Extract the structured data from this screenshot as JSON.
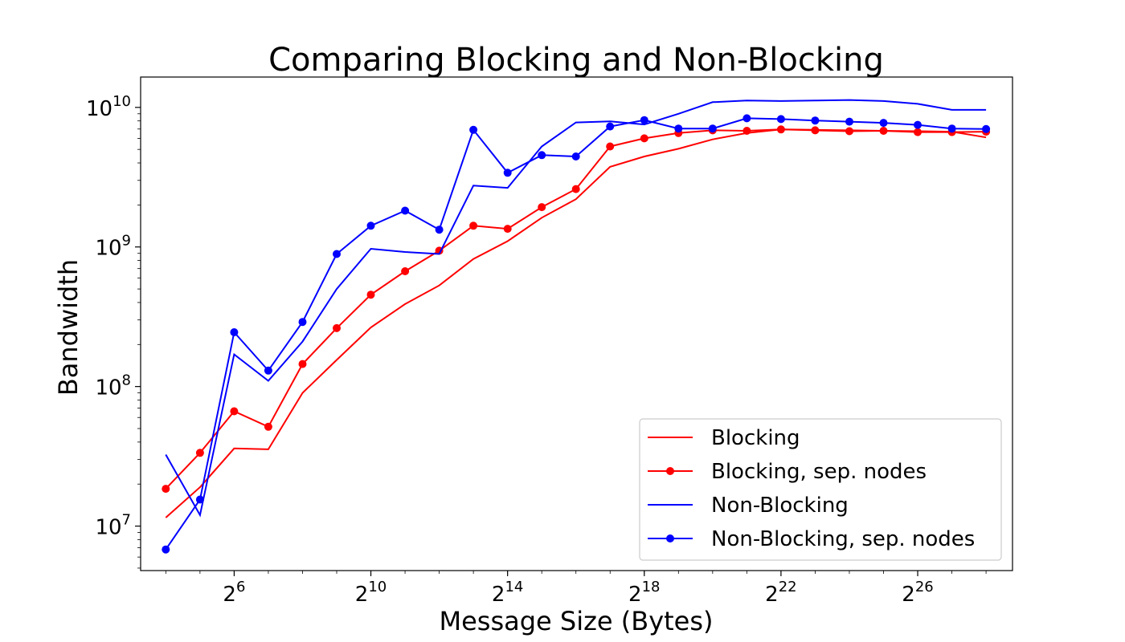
{
  "chart_data": {
    "type": "line",
    "title": "Comparing Blocking and Non-Blocking",
    "xlabel": "Message Size (Bytes)",
    "ylabel": "Bandwidth",
    "x_scale": "log2",
    "y_scale": "log10",
    "x": [
      16,
      32,
      64,
      128,
      256,
      512,
      1024,
      2048,
      4096,
      8192,
      16384,
      32768,
      65536,
      131072,
      262144,
      524288,
      1048576,
      2097152,
      4194304,
      8388608,
      16777216,
      33554432,
      67108864,
      134217728,
      268435456
    ],
    "x_ticks": [
      {
        "base": "2",
        "exp": "6",
        "value": 64
      },
      {
        "base": "2",
        "exp": "10",
        "value": 1024
      },
      {
        "base": "2",
        "exp": "14",
        "value": 16384
      },
      {
        "base": "2",
        "exp": "18",
        "value": 262144
      },
      {
        "base": "2",
        "exp": "22",
        "value": 4194304
      },
      {
        "base": "2",
        "exp": "26",
        "value": 67108864
      }
    ],
    "y_ticks": [
      {
        "base": "10",
        "exp": "7",
        "value": 10000000
      },
      {
        "base": "10",
        "exp": "8",
        "value": 100000000
      },
      {
        "base": "10",
        "exp": "9",
        "value": 1000000000
      },
      {
        "base": "10",
        "exp": "10",
        "value": 10000000000
      }
    ],
    "xlim": [
      9.6,
      459000000
    ],
    "ylim": [
      4800000,
      16500000000
    ],
    "legend_position": "bottom-right",
    "series": [
      {
        "name": "Blocking",
        "color": "#ff0000",
        "marker": false,
        "values": [
          11500000,
          19000000,
          36000000,
          35500000,
          90000000,
          155000000,
          265000000,
          390000000,
          530000000,
          820000000,
          1100000000,
          1620000000,
          2200000000,
          3750000000,
          4450000000,
          5050000000,
          5900000000,
          6550000000,
          6950000000,
          6900000000,
          6850000000,
          6800000000,
          6750000000,
          6700000000,
          6100000000
        ]
      },
      {
        "name": "Blocking, sep. nodes",
        "color": "#ff0000",
        "marker": true,
        "values": [
          18500000,
          33500000,
          66500000,
          51500000,
          145000000,
          262000000,
          455000000,
          670000000,
          940000000,
          1420000000,
          1350000000,
          1930000000,
          2600000000,
          5250000000,
          6000000000,
          6550000000,
          6850000000,
          6800000000,
          6950000000,
          6850000000,
          6750000000,
          6800000000,
          6650000000,
          6650000000,
          6700000000
        ]
      },
      {
        "name": "Non-Blocking",
        "color": "#0000ff",
        "marker": false,
        "values": [
          32500000,
          12000000,
          170000000,
          110000000,
          210000000,
          500000000,
          970000000,
          920000000,
          890000000,
          2750000000,
          2650000000,
          5250000000,
          7800000000,
          7950000000,
          7550000000,
          9000000000,
          10900000000,
          11200000000,
          11100000000,
          11200000000,
          11300000000,
          11100000000,
          10600000000,
          9600000000,
          9600000000
        ]
      },
      {
        "name": "Non-Blocking, sep. nodes",
        "color": "#0000ff",
        "marker": true,
        "values": [
          6800000,
          15500000,
          245000000,
          130000000,
          290000000,
          890000000,
          1420000000,
          1820000000,
          1330000000,
          6900000000,
          3400000000,
          4550000000,
          4450000000,
          7300000000,
          8100000000,
          7050000000,
          7050000000,
          8350000000,
          8250000000,
          8050000000,
          7900000000,
          7750000000,
          7500000000,
          7050000000,
          7000000000
        ]
      }
    ]
  }
}
